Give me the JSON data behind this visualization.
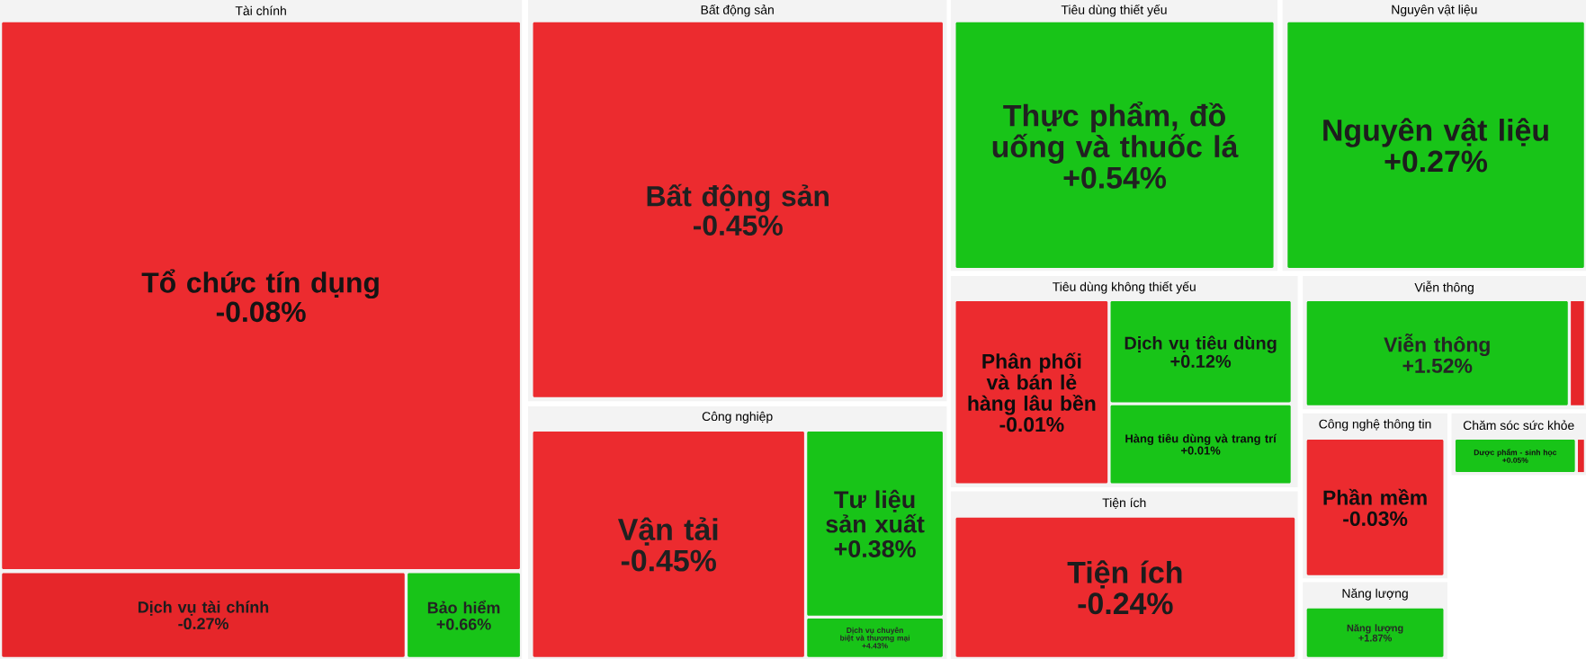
{
  "chart_data": {
    "type": "other",
    "categories": [
      "Tổ chức tín dụng",
      "Dịch vụ tài chính",
      "Bảo hiểm",
      "Bất động sản",
      "Thực phẩm, đồ uống và thuốc lá",
      "Nguyên vật liệu",
      "Vận tải",
      "Tư liệu sản xuất",
      "Dịch vụ chuyên biệt và thương mại",
      "Phân phối và bán lẻ hàng lâu bền",
      "Dịch vụ tiêu dùng",
      "Hàng tiêu dùng và trang trí",
      "Viễn thông",
      "Phần mềm",
      "Dược phẩm - sinh học",
      "Tiện ích",
      "Năng lượng"
    ],
    "series": [
      {
        "name": "Tài chính",
        "values": [
          -0.08,
          -0.27,
          0.66,
          null,
          null,
          null,
          null,
          null,
          null,
          null,
          null,
          null,
          null,
          null,
          null,
          null,
          null
        ],
        "value_labels": [
          "-0.08%",
          "-0.27%",
          "+0.66%",
          null,
          null,
          null,
          null,
          null,
          null,
          null,
          null,
          null,
          null,
          null,
          null,
          null,
          null
        ],
        "colors": [
          "#ec2b2f",
          "#e6262a",
          "#18c418",
          null,
          null,
          null,
          null,
          null,
          null,
          null,
          null,
          null,
          null,
          null,
          null,
          null,
          null
        ]
      },
      {
        "name": "Bất động sản",
        "values": [
          null,
          null,
          null,
          -0.45,
          null,
          null,
          null,
          null,
          null,
          null,
          null,
          null,
          null,
          null,
          null,
          null,
          null
        ],
        "value_labels": [
          null,
          null,
          null,
          "-0.45%",
          null,
          null,
          null,
          null,
          null,
          null,
          null,
          null,
          null,
          null,
          null,
          null,
          null
        ],
        "colors": [
          null,
          null,
          null,
          "#ec2b2f",
          null,
          null,
          null,
          null,
          null,
          null,
          null,
          null,
          null,
          null,
          null,
          null,
          null
        ]
      },
      {
        "name": "Tiêu dùng thiết yếu",
        "values": [
          null,
          null,
          null,
          null,
          0.54,
          null,
          null,
          null,
          null,
          null,
          null,
          null,
          null,
          null,
          null,
          null,
          null
        ],
        "value_labels": [
          null,
          null,
          null,
          null,
          "+0.54%",
          null,
          null,
          null,
          null,
          null,
          null,
          null,
          null,
          null,
          null,
          null,
          null
        ],
        "colors": [
          null,
          null,
          null,
          null,
          "#18c418",
          null,
          null,
          null,
          null,
          null,
          null,
          null,
          null,
          null,
          null,
          null,
          null
        ]
      },
      {
        "name": "Nguyên vật liệu",
        "values": [
          null,
          null,
          null,
          null,
          null,
          0.27,
          null,
          null,
          null,
          null,
          null,
          null,
          null,
          null,
          null,
          null,
          null
        ],
        "value_labels": [
          null,
          null,
          null,
          null,
          null,
          "+0.27%",
          null,
          null,
          null,
          null,
          null,
          null,
          null,
          null,
          null,
          null,
          null
        ],
        "colors": [
          null,
          null,
          null,
          null,
          null,
          "#18c418",
          null,
          null,
          null,
          null,
          null,
          null,
          null,
          null,
          null,
          null,
          null
        ]
      },
      {
        "name": "Công nghiệp",
        "values": [
          null,
          null,
          null,
          null,
          null,
          null,
          -0.45,
          0.38,
          4.43,
          null,
          null,
          null,
          null,
          null,
          null,
          null,
          null
        ],
        "value_labels": [
          null,
          null,
          null,
          null,
          null,
          null,
          "-0.45%",
          "+0.38%",
          "+4.43%",
          null,
          null,
          null,
          null,
          null,
          null,
          null,
          null
        ],
        "colors": [
          null,
          null,
          null,
          null,
          null,
          null,
          "#ec2b2f",
          "#18c418",
          "#18c418",
          null,
          null,
          null,
          null,
          null,
          null,
          null,
          null
        ]
      },
      {
        "name": "Tiêu dùng không thiết yếu",
        "values": [
          null,
          null,
          null,
          null,
          null,
          null,
          null,
          null,
          null,
          -0.01,
          0.12,
          0.01,
          null,
          null,
          null,
          null,
          null
        ],
        "value_labels": [
          null,
          null,
          null,
          null,
          null,
          null,
          null,
          null,
          null,
          "-0.01%",
          "+0.12%",
          "+0.01%",
          null,
          null,
          null,
          null,
          null
        ],
        "colors": [
          null,
          null,
          null,
          null,
          null,
          null,
          null,
          null,
          null,
          "#ec2b2f",
          "#18c418",
          "#18c418",
          null,
          null,
          null,
          null,
          null
        ]
      },
      {
        "name": "Viễn thông",
        "values": [
          null,
          null,
          null,
          null,
          null,
          null,
          null,
          null,
          null,
          null,
          null,
          null,
          1.52,
          null,
          null,
          null,
          null
        ],
        "value_labels": [
          null,
          null,
          null,
          null,
          null,
          null,
          null,
          null,
          null,
          null,
          null,
          null,
          "+1.52%",
          null,
          null,
          null,
          null
        ],
        "colors": [
          null,
          null,
          null,
          null,
          null,
          null,
          null,
          null,
          null,
          null,
          null,
          null,
          "#18c418",
          null,
          null,
          null,
          null
        ]
      },
      {
        "name": "Công nghệ thông tin",
        "values": [
          null,
          null,
          null,
          null,
          null,
          null,
          null,
          null,
          null,
          null,
          null,
          null,
          null,
          -0.03,
          null,
          null,
          null
        ],
        "value_labels": [
          null,
          null,
          null,
          null,
          null,
          null,
          null,
          null,
          null,
          null,
          null,
          null,
          null,
          "-0.03%",
          null,
          null,
          null
        ],
        "colors": [
          null,
          null,
          null,
          null,
          null,
          null,
          null,
          null,
          null,
          null,
          null,
          null,
          null,
          "#ec2b2f",
          null,
          null,
          null
        ]
      },
      {
        "name": "Chăm sóc sức khỏe",
        "values": [
          null,
          null,
          null,
          null,
          null,
          null,
          null,
          null,
          null,
          null,
          null,
          null,
          null,
          null,
          0.05,
          null,
          null
        ],
        "value_labels": [
          null,
          null,
          null,
          null,
          null,
          null,
          null,
          null,
          null,
          null,
          null,
          null,
          null,
          null,
          "+0.05%",
          null,
          null
        ],
        "colors": [
          null,
          null,
          null,
          null,
          null,
          null,
          null,
          null,
          null,
          null,
          null,
          null,
          null,
          null,
          "#18c418",
          null,
          null
        ]
      },
      {
        "name": "Tiện ích",
        "values": [
          null,
          null,
          null,
          null,
          null,
          null,
          null,
          null,
          null,
          null,
          null,
          null,
          null,
          null,
          null,
          -0.24,
          null
        ],
        "value_labels": [
          null,
          null,
          null,
          null,
          null,
          null,
          null,
          null,
          null,
          null,
          null,
          null,
          null,
          null,
          null,
          "-0.24%",
          null
        ],
        "colors": [
          null,
          null,
          null,
          null,
          null,
          null,
          null,
          null,
          null,
          null,
          null,
          null,
          null,
          null,
          null,
          "#ec2b2f",
          null
        ]
      },
      {
        "name": "Năng lượng",
        "values": [
          null,
          null,
          null,
          null,
          null,
          null,
          null,
          null,
          null,
          null,
          null,
          null,
          null,
          null,
          null,
          null,
          1.87
        ],
        "value_labels": [
          null,
          null,
          null,
          null,
          null,
          null,
          null,
          null,
          null,
          null,
          null,
          null,
          null,
          null,
          null,
          null,
          "+1.87%"
        ],
        "colors": [
          null,
          null,
          null,
          null,
          null,
          null,
          null,
          null,
          null,
          null,
          null,
          null,
          null,
          null,
          null,
          null,
          "#18c418"
        ]
      }
    ]
  }
}
